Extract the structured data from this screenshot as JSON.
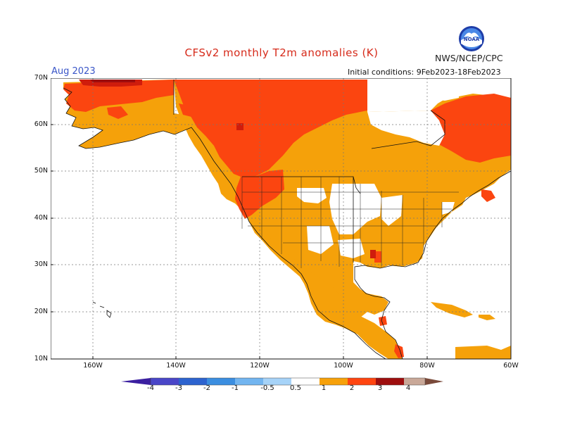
{
  "header": {
    "title": "CFSv2 monthly T2m anomalies (K)",
    "org": "NWS/NCEP/CPC",
    "month": "Aug 2023",
    "initial_conditions": "Initial conditions: 9Feb2023-18Feb2023"
  },
  "axes": {
    "lat_labels": [
      "70N",
      "60N",
      "50N",
      "40N",
      "30N",
      "20N",
      "10N"
    ],
    "lon_labels": [
      "160W",
      "140W",
      "120W",
      "100W",
      "80W",
      "60W"
    ]
  },
  "colorbar": {
    "labels": [
      "-4",
      "-3",
      "-2",
      "-1",
      "-0.5",
      "0.5",
      "1",
      "2",
      "3",
      "4"
    ],
    "colors": [
      "#3b1fa0",
      "#4a46c8",
      "#2d63cf",
      "#3b8ee0",
      "#72b5f0",
      "#ffffff",
      "#f7a10a",
      "#ff4510",
      "#dc1c0c",
      "#9e0e0e",
      "#c9a898",
      "#7a4a3a"
    ]
  },
  "anomaly_colors": {
    "weak": "#f5a10a",
    "moderate": "#fb4510",
    "strong": "#cf1c0c",
    "very_strong": "#9e0e0e"
  }
}
